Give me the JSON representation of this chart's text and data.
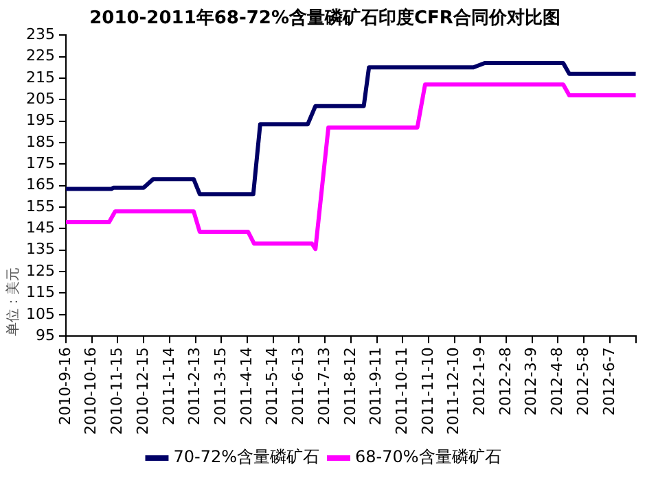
{
  "chart_data": {
    "type": "line",
    "title": "2010-2011年68-72%含量磷矿石印度CFR合同价对比图",
    "ylabel": "单位：美元",
    "xlim": [
      "2010-09-16",
      "2012-07-07"
    ],
    "xticks": [
      {
        "value": "2010-09-16",
        "label": "2010-9-16"
      },
      {
        "value": "2010-10-16",
        "label": "2010-10-16"
      },
      {
        "value": "2010-11-15",
        "label": "2010-11-15"
      },
      {
        "value": "2010-12-15",
        "label": "2010-12-15"
      },
      {
        "value": "2011-01-14",
        "label": "2011-1-14"
      },
      {
        "value": "2011-02-13",
        "label": "2011-2-13"
      },
      {
        "value": "2011-03-15",
        "label": "2011-3-15"
      },
      {
        "value": "2011-04-14",
        "label": "2011-4-14"
      },
      {
        "value": "2011-05-14",
        "label": "2011-5-14"
      },
      {
        "value": "2011-06-13",
        "label": "2011-6-13"
      },
      {
        "value": "2011-07-13",
        "label": "2011-7-13"
      },
      {
        "value": "2011-08-12",
        "label": "2011-8-12"
      },
      {
        "value": "2011-09-11",
        "label": "2011-9-11"
      },
      {
        "value": "2011-10-11",
        "label": "2011-10-11"
      },
      {
        "value": "2011-11-10",
        "label": "2011-11-10"
      },
      {
        "value": "2011-12-10",
        "label": "2011-12-10"
      },
      {
        "value": "2012-01-09",
        "label": "2012-1-9"
      },
      {
        "value": "2012-02-08",
        "label": "2012-2-8"
      },
      {
        "value": "2012-03-09",
        "label": "2012-3-9"
      },
      {
        "value": "2012-04-08",
        "label": "2012-4-8"
      },
      {
        "value": "2012-05-08",
        "label": "2012-5-8"
      },
      {
        "value": "2012-06-07",
        "label": "2012-6-7"
      },
      {
        "value": "2012-07-07",
        "label": null
      }
    ],
    "ylim": [
      95,
      235
    ],
    "yticks": [
      95,
      105,
      115,
      125,
      135,
      145,
      155,
      165,
      175,
      185,
      195,
      205,
      215,
      225,
      235
    ],
    "grid": false,
    "legend": "bottom",
    "marker": "none",
    "line_style": "solid",
    "series": [
      {
        "name": "70-72%含量磷矿石",
        "color": "#000066",
        "x": [
          "2010-09-16",
          "2010-11-08",
          "2010-11-10",
          "2010-12-15",
          "2010-12-26",
          "2011-02-11",
          "2011-02-18",
          "2011-04-21",
          "2011-04-29",
          "2011-06-23",
          "2011-07-02",
          "2011-08-27",
          "2011-09-02",
          "2012-01-01",
          "2012-01-14",
          "2012-04-14",
          "2012-04-21",
          "2012-07-07"
        ],
        "values": [
          163.5,
          163.5,
          164,
          164,
          168,
          168,
          161,
          161,
          193.5,
          193.5,
          202,
          202,
          220,
          220,
          222,
          222,
          217,
          217
        ]
      },
      {
        "name": "68-70%含量磷矿石",
        "color": "#ff00ff",
        "x": [
          "2010-09-16",
          "2010-11-05",
          "2010-11-12",
          "2011-02-11",
          "2011-02-18",
          "2011-04-15",
          "2011-04-22",
          "2011-06-28",
          "2011-07-02",
          "2011-07-17",
          "2011-10-28",
          "2011-11-06",
          "2012-04-14",
          "2012-04-21",
          "2012-07-07"
        ],
        "values": [
          148,
          148,
          153,
          153,
          143.5,
          143.5,
          138,
          138,
          135.5,
          192,
          192,
          212,
          212,
          207,
          207
        ]
      }
    ]
  }
}
